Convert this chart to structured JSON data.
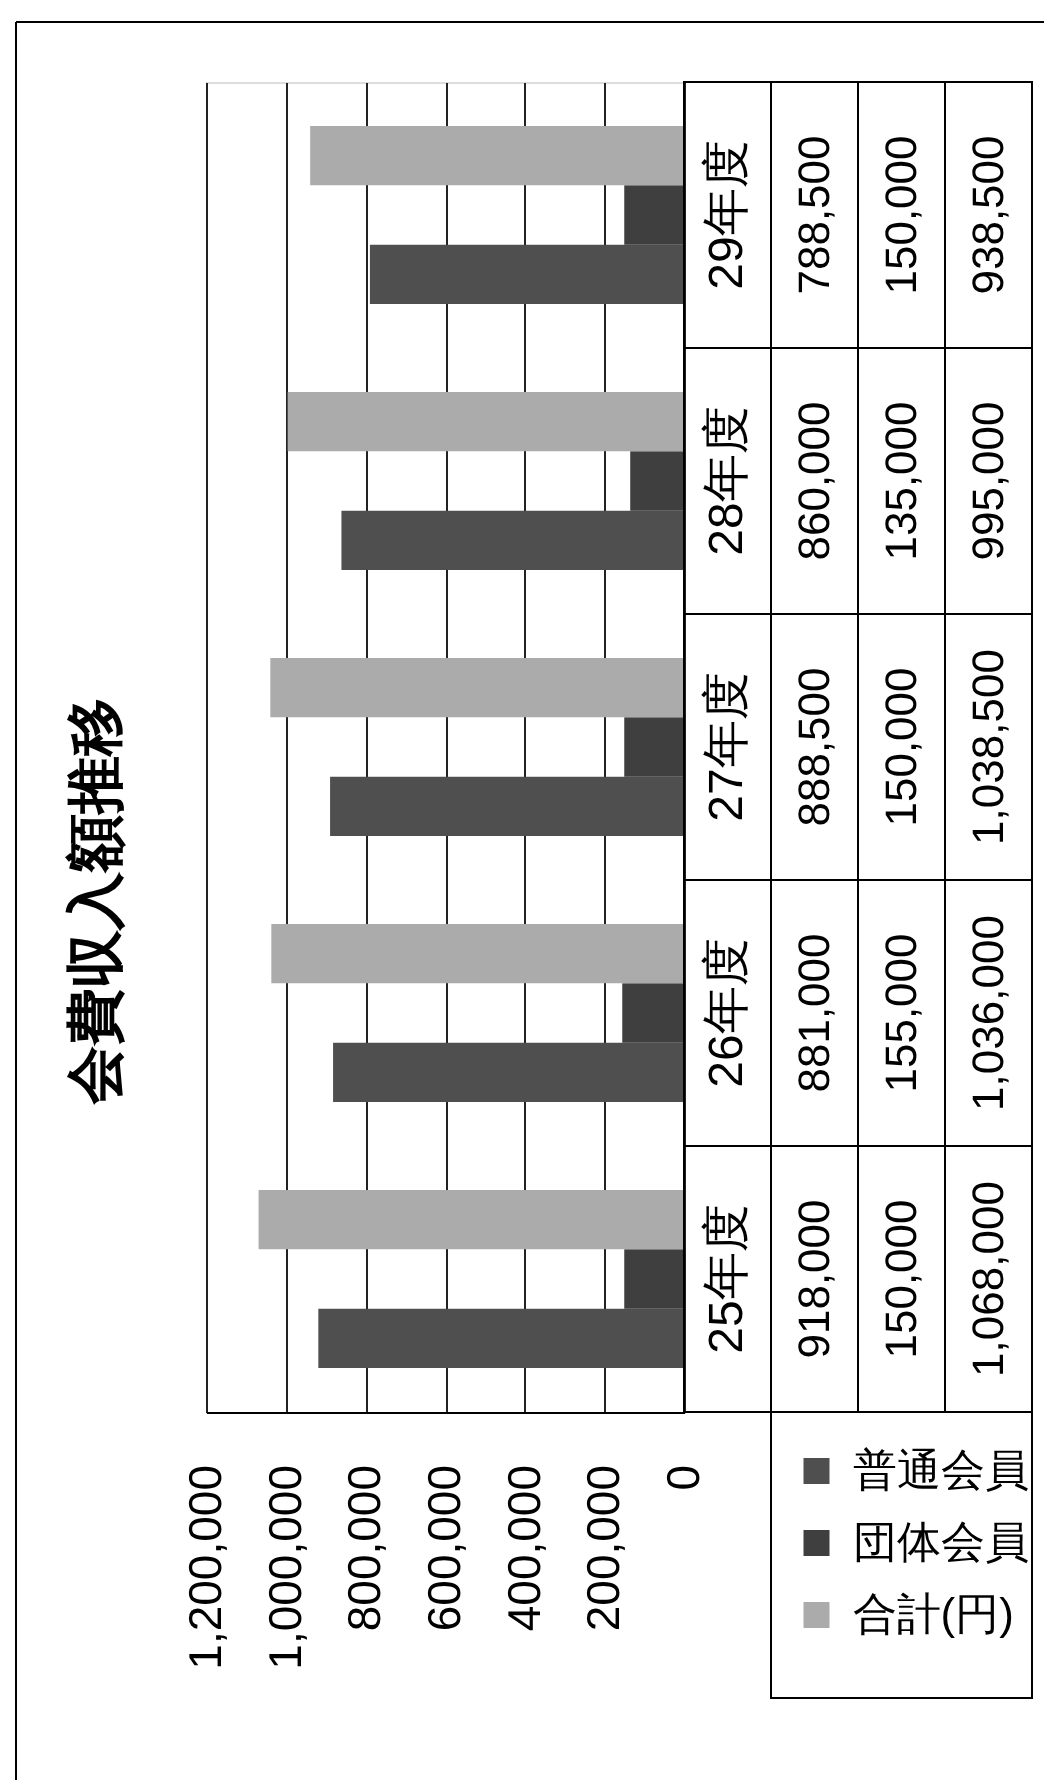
{
  "chart_data": {
    "type": "bar",
    "orientation": "horizontal",
    "title": "会費収入額推移",
    "categories": [
      "29年度",
      "28年度",
      "27年度",
      "26年度",
      "25年度"
    ],
    "series": [
      {
        "name": "普通会員",
        "color": "#4f4f4f",
        "values": [
          788500,
          860000,
          888500,
          881000,
          918000
        ],
        "value_labels": [
          "788,500",
          "860,000",
          "888,500",
          "881,000",
          "918,000"
        ]
      },
      {
        "name": "団体会員",
        "color": "#3f3f3f",
        "values": [
          150000,
          135000,
          150000,
          155000,
          150000
        ],
        "value_labels": [
          "150,000",
          "135,000",
          "150,000",
          "155,000",
          "150,000"
        ]
      },
      {
        "name": "合計(円)",
        "color": "#ababab",
        "values": [
          938500,
          995000,
          1038500,
          1036000,
          1068000
        ],
        "value_labels": [
          "938,500",
          "995,000",
          "1,038,500",
          "1,036,000",
          "1,068,000"
        ]
      }
    ],
    "xlim": [
      1200000,
      0
    ],
    "xticks": [
      0,
      {
        "value": 200000,
        "label": "200,000"
      },
      {
        "value": 400000,
        "label": "400,000"
      },
      {
        "value": 600000,
        "label": "600,000"
      },
      {
        "value": 800000,
        "label": "800,000"
      },
      {
        "value": 1000000,
        "label": "1,000,000"
      },
      {
        "value": 1200000,
        "label": "1,200,000"
      }
    ],
    "grid": "x",
    "legend": "bottom right"
  }
}
